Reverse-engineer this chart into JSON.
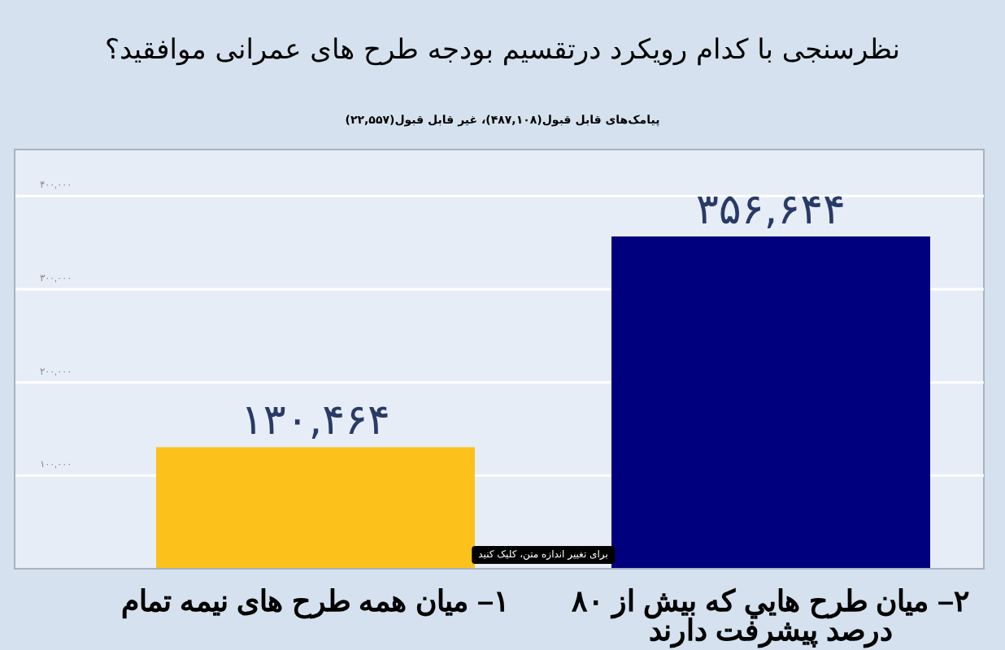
{
  "chart_data": {
    "type": "bar",
    "title": "نظرسنجی با کدام رویکرد درتقسیم بودجه طرح های عمرانی موافقید؟",
    "subtitle": "پیامک‌های قابل قبول(۴۸۷,۱۰۸)، غیر قابل قبول(۲۲,۵۵۷)",
    "categories": [
      "۱– میان همه طرح های نیمه تمام",
      "۲– میان طرح هایي که بیش از ۸۰ درصد پیشرفت دارند"
    ],
    "values": [
      130464,
      356644
    ],
    "colors": [
      "#fcc21b",
      "#00007f"
    ],
    "value_labels": [
      "۱۳۰,۴۶۴",
      "۳۵۶,۶۴۴"
    ],
    "ylim": [
      0,
      450000
    ],
    "yticks": [
      {
        "value": 100000,
        "label": "۱۰۰,۰۰۰"
      },
      {
        "value": 200000,
        "label": "۲۰۰,۰۰۰"
      },
      {
        "value": 300000,
        "label": "۳۰۰,۰۰۰"
      },
      {
        "value": 400000,
        "label": "۴۰۰,۰۰۰"
      }
    ],
    "grid": "y",
    "annotations": [
      "برای تغییر اندازه متن، کلیک کنید"
    ]
  }
}
